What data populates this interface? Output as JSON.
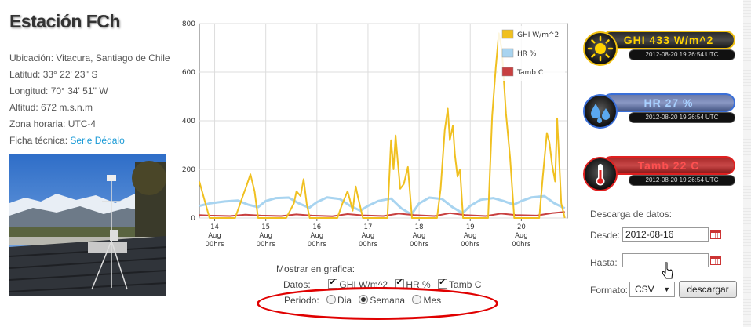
{
  "station": {
    "title": "Estación FCh",
    "ubicacion": "Ubicación: Vitacura, Santiago de Chile",
    "latitud": "Latitud: 33° 22' 23'' S",
    "longitud": "Longitud: 70° 34' 51'' W",
    "altitud": "Altitud: 672 m.s.n.m",
    "zona": "Zona horaria: UTC-4",
    "ficha_label": "Ficha técnica:",
    "ficha_link": "Serie Dédalo"
  },
  "chart_data": {
    "type": "line",
    "ylim": [
      0,
      800
    ],
    "yticks": [
      0,
      200,
      400,
      600,
      800
    ],
    "xticks": [
      {
        "day": "14",
        "mon": "Aug",
        "hr": "00hrs"
      },
      {
        "day": "15",
        "mon": "Aug",
        "hr": "00hrs"
      },
      {
        "day": "16",
        "mon": "Aug",
        "hr": "00hrs"
      },
      {
        "day": "17",
        "mon": "Aug",
        "hr": "00hrs"
      },
      {
        "day": "18",
        "mon": "Aug",
        "hr": "00hrs"
      },
      {
        "day": "19",
        "mon": "Aug",
        "hr": "00hrs"
      },
      {
        "day": "20",
        "mon": "Aug",
        "hr": "00hrs"
      }
    ],
    "legend_position": "top-right",
    "series": [
      {
        "name": "GHI W/m^2",
        "color": "#f0c020",
        "x": [
          13.7,
          13.9,
          14.0,
          14.4,
          14.55,
          14.62,
          14.7,
          14.78,
          14.85,
          15.0,
          15.4,
          15.55,
          15.6,
          15.68,
          15.74,
          15.8,
          15.86,
          16.0,
          16.4,
          16.5,
          16.6,
          16.64,
          16.7,
          16.76,
          16.8,
          16.9,
          17.0,
          17.38,
          17.45,
          17.5,
          17.54,
          17.58,
          17.63,
          17.7,
          17.78,
          17.86,
          18.0,
          18.35,
          18.42,
          18.5,
          18.56,
          18.6,
          18.66,
          18.7,
          18.75,
          18.8,
          18.86,
          19.0,
          19.35,
          19.43,
          19.5,
          19.56,
          19.62,
          19.7,
          19.78,
          19.86,
          20.0,
          20.35,
          20.42,
          20.5,
          20.55,
          20.6,
          20.66,
          20.7,
          20.78,
          20.85
        ],
        "values": [
          150,
          0,
          0,
          0,
          90,
          130,
          180,
          110,
          0,
          0,
          0,
          60,
          110,
          90,
          160,
          60,
          0,
          0,
          0,
          60,
          110,
          80,
          30,
          130,
          90,
          0,
          0,
          0,
          320,
          200,
          340,
          240,
          120,
          140,
          210,
          0,
          0,
          0,
          120,
          360,
          450,
          320,
          380,
          260,
          170,
          200,
          0,
          0,
          0,
          420,
          620,
          760,
          690,
          430,
          250,
          0,
          0,
          0,
          170,
          350,
          310,
          220,
          150,
          410,
          60,
          0
        ]
      },
      {
        "name": "HR %",
        "color": "#a8d4f0",
        "x": [
          13.7,
          13.9,
          14.2,
          14.45,
          14.65,
          14.85,
          15.0,
          15.2,
          15.45,
          15.65,
          15.85,
          16.0,
          16.2,
          16.45,
          16.65,
          16.85,
          17.0,
          17.2,
          17.45,
          17.65,
          17.85,
          18.0,
          18.2,
          18.45,
          18.65,
          18.85,
          19.0,
          19.2,
          19.45,
          19.65,
          19.85,
          20.0,
          20.2,
          20.45,
          20.65,
          20.85
        ],
        "values": [
          50,
          60,
          68,
          72,
          55,
          45,
          70,
          82,
          84,
          60,
          42,
          65,
          85,
          78,
          50,
          30,
          50,
          70,
          80,
          40,
          15,
          60,
          84,
          78,
          45,
          20,
          50,
          75,
          82,
          70,
          55,
          70,
          85,
          90,
          60,
          40
        ]
      },
      {
        "name": "Tamb C",
        "color": "#c84040",
        "x": [
          13.7,
          13.9,
          14.3,
          14.6,
          14.9,
          15.3,
          15.6,
          15.9,
          16.3,
          16.6,
          16.9,
          17.3,
          17.6,
          17.9,
          18.3,
          18.6,
          18.9,
          19.3,
          19.6,
          19.9,
          20.3,
          20.6,
          20.85
        ],
        "values": [
          12,
          10,
          8,
          14,
          10,
          8,
          15,
          10,
          7,
          16,
          11,
          8,
          18,
          12,
          8,
          20,
          12,
          8,
          18,
          12,
          10,
          20,
          25
        ]
      }
    ]
  },
  "controls": {
    "mostrar": "Mostrar en grafica:",
    "datos_label": "Datos:",
    "datos": [
      "GHI W/m^2",
      "HR %",
      "Tamb C"
    ],
    "periodo_label": "Periodo:",
    "periodo": [
      "Dia",
      "Semana",
      "Mes"
    ],
    "periodo_selected": "Semana"
  },
  "widgets": [
    {
      "label": "GHI  433  W/m^2",
      "time": "2012-08-20 19:26:54 UTC",
      "icon": "sun-icon",
      "accent": "#f0c010"
    },
    {
      "label": "HR  27  %",
      "time": "2012-08-20 19:26:54 UTC",
      "icon": "water-drops-icon",
      "accent": "#3a6fd8"
    },
    {
      "label": "Tamb  22  C",
      "time": "2012-08-20 19:26:54 UTC",
      "icon": "thermometer-icon",
      "accent": "#e02020"
    }
  ],
  "download": {
    "title": "Descarga de datos:",
    "desde_label": "Desde:",
    "desde_value": "2012-08-16",
    "hasta_label": "Hasta:",
    "hasta_value": "",
    "formato_label": "Formato:",
    "formato_value": "CSV",
    "button": "descargar"
  }
}
